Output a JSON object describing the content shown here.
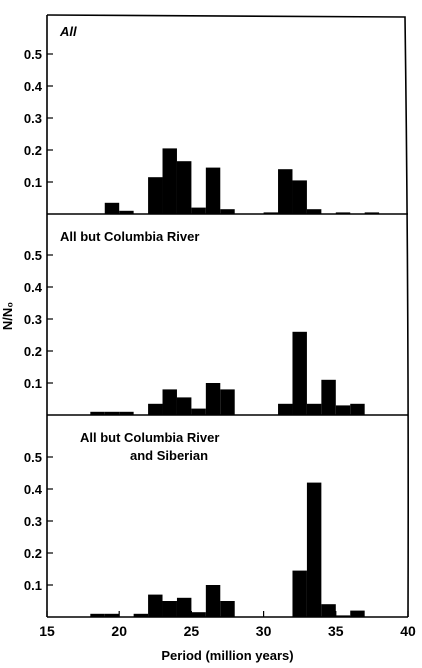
{
  "chart_data": {
    "type": "bar",
    "xlabel": "Period (million years)",
    "ylabel": "N/N₀",
    "xlim": [
      15,
      40
    ],
    "ylim": [
      0,
      0.6
    ],
    "x_ticks": [
      "15",
      "20",
      "25",
      "30",
      "35",
      "40"
    ],
    "y_ticks": [
      "0.1",
      "0.2",
      "0.3",
      "0.4",
      "0.5"
    ],
    "bin_width": 1,
    "panels": [
      {
        "title": "All",
        "title_style": "italic",
        "bins": [
          {
            "x": 18,
            "value": 0.0
          },
          {
            "x": 19,
            "value": 0.035
          },
          {
            "x": 20,
            "value": 0.01
          },
          {
            "x": 22,
            "value": 0.115
          },
          {
            "x": 23,
            "value": 0.205
          },
          {
            "x": 24,
            "value": 0.165
          },
          {
            "x": 25,
            "value": 0.02
          },
          {
            "x": 26,
            "value": 0.145
          },
          {
            "x": 27,
            "value": 0.015
          },
          {
            "x": 30,
            "value": 0.005
          },
          {
            "x": 31,
            "value": 0.14
          },
          {
            "x": 32,
            "value": 0.105
          },
          {
            "x": 33,
            "value": 0.015
          },
          {
            "x": 35,
            "value": 0.005
          },
          {
            "x": 37,
            "value": 0.005
          }
        ]
      },
      {
        "title": "All but Columbia River",
        "bins": [
          {
            "x": 18,
            "value": 0.01
          },
          {
            "x": 19,
            "value": 0.01
          },
          {
            "x": 20,
            "value": 0.01
          },
          {
            "x": 22,
            "value": 0.035
          },
          {
            "x": 23,
            "value": 0.08
          },
          {
            "x": 24,
            "value": 0.055
          },
          {
            "x": 25,
            "value": 0.02
          },
          {
            "x": 26,
            "value": 0.1
          },
          {
            "x": 27,
            "value": 0.08
          },
          {
            "x": 31,
            "value": 0.035
          },
          {
            "x": 32,
            "value": 0.26
          },
          {
            "x": 33,
            "value": 0.035
          },
          {
            "x": 34,
            "value": 0.11
          },
          {
            "x": 35,
            "value": 0.03
          },
          {
            "x": 36,
            "value": 0.035
          }
        ]
      },
      {
        "title": "All but Columbia River",
        "title_line2": "and Siberian",
        "bins": [
          {
            "x": 18,
            "value": 0.01
          },
          {
            "x": 19,
            "value": 0.01
          },
          {
            "x": 21,
            "value": 0.01
          },
          {
            "x": 22,
            "value": 0.07
          },
          {
            "x": 23,
            "value": 0.05
          },
          {
            "x": 24,
            "value": 0.06
          },
          {
            "x": 25,
            "value": 0.015
          },
          {
            "x": 26,
            "value": 0.1
          },
          {
            "x": 27,
            "value": 0.05
          },
          {
            "x": 32,
            "value": 0.145
          },
          {
            "x": 33,
            "value": 0.42
          },
          {
            "x": 34,
            "value": 0.04
          },
          {
            "x": 35,
            "value": 0.005
          },
          {
            "x": 36,
            "value": 0.02
          }
        ]
      }
    ]
  }
}
